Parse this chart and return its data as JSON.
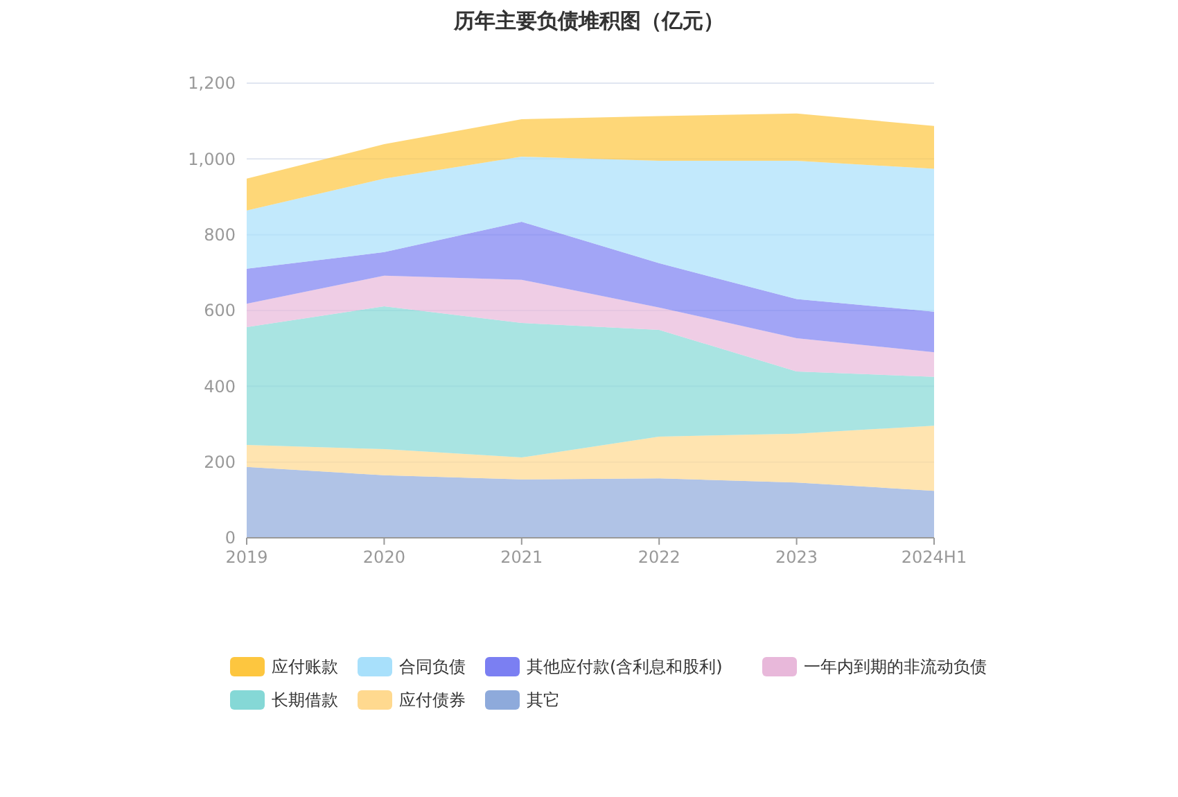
{
  "chart_data": {
    "type": "area",
    "title": "历年主要负债堆积图（亿元）",
    "stacked": true,
    "categories": [
      "2019",
      "2020",
      "2021",
      "2022",
      "2023",
      "2024H1"
    ],
    "ylim": [
      0,
      1200
    ],
    "yticks": [
      0,
      200,
      400,
      600,
      800,
      {
        "value": 1000,
        "label": "1,000"
      },
      {
        "value": 1200,
        "label": "1,200"
      }
    ],
    "grid": "y",
    "legend": "bottom",
    "series": [
      {
        "name": "其它",
        "color": "#8eaadb",
        "values": [
          187,
          165,
          154,
          157,
          146,
          124
        ]
      },
      {
        "name": "应付债券",
        "color": "#ffd98f",
        "values": [
          58,
          69,
          58,
          110,
          129,
          172
        ]
      },
      {
        "name": "长期借款",
        "color": "#85d8d6",
        "values": [
          311,
          377,
          355,
          282,
          164,
          129
        ]
      },
      {
        "name": "一年内到期的非流动负债",
        "color": "#e8b8da",
        "values": [
          62,
          81,
          114,
          59,
          88,
          65
        ]
      },
      {
        "name": "其他应付款(含利息和股利)",
        "color": "#7b7ff2",
        "values": [
          92,
          62,
          153,
          117,
          103,
          107
        ]
      },
      {
        "name": "合同负债",
        "color": "#a8e0fb",
        "values": [
          154,
          194,
          172,
          270,
          365,
          377
        ]
      },
      {
        "name": "应付账款",
        "color": "#fdc63f",
        "values": [
          84,
          91,
          99,
          118,
          125,
          113
        ]
      }
    ]
  }
}
